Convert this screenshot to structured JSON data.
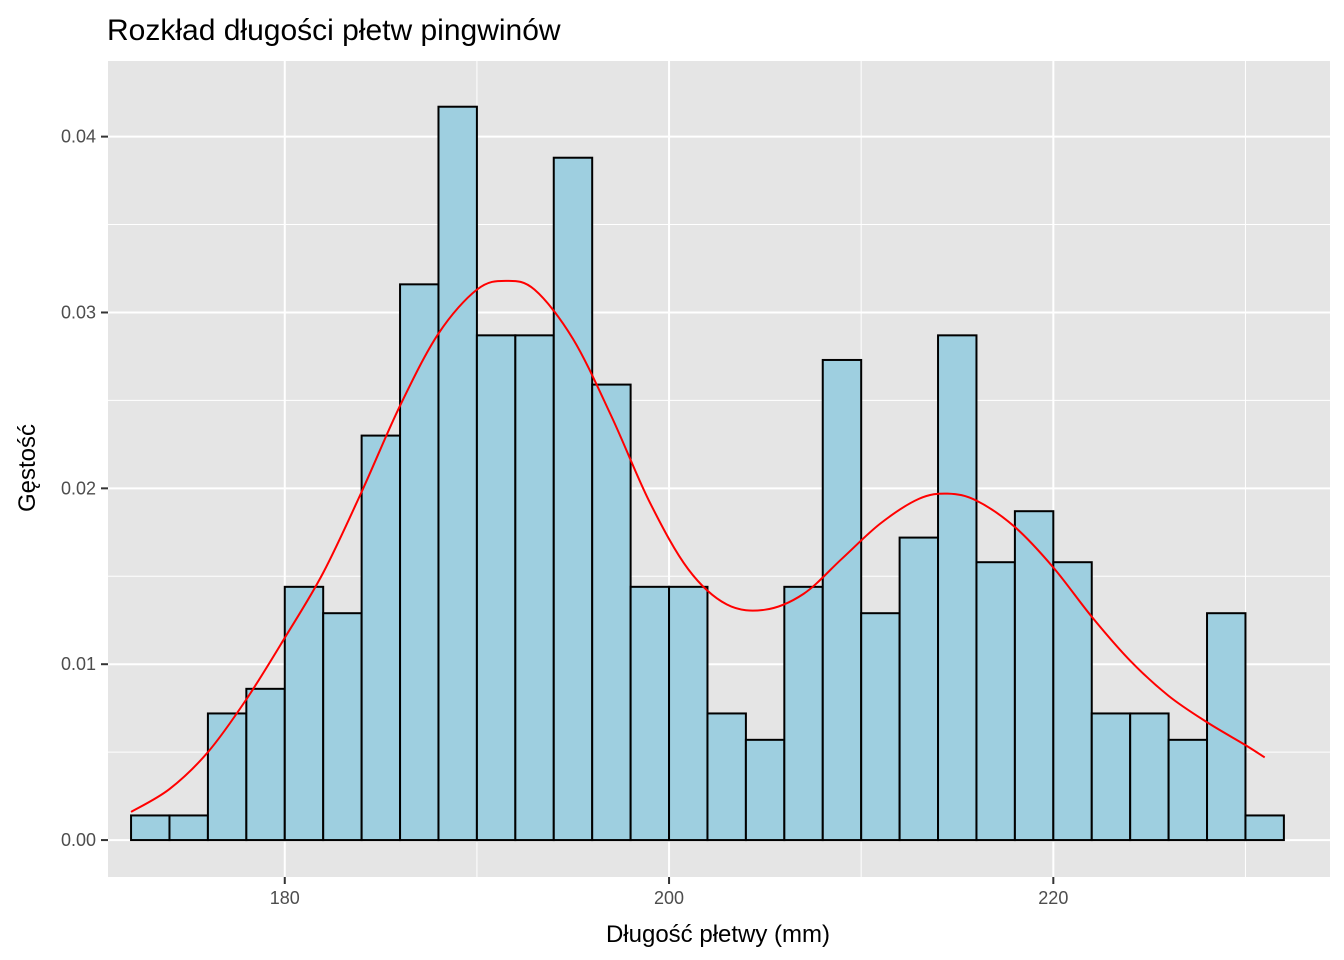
{
  "chart_data": {
    "type": "bar",
    "title": "Rozkład długości płetw pingwinów",
    "xlabel": "Długość płetwy (mm)",
    "ylabel": "Gęstość",
    "xlim": [
      170.8,
      234.4
    ],
    "ylim": [
      -0.0021,
      0.0443
    ],
    "x_ticks": [
      180,
      200,
      220
    ],
    "x_tick_labels": [
      "180",
      "200",
      "220"
    ],
    "y_ticks": [
      0.0,
      0.01,
      0.02,
      0.03,
      0.04
    ],
    "y_tick_labels": [
      "0.00",
      "0.01",
      "0.02",
      "0.03",
      "0.04"
    ],
    "grid": true,
    "background": "#e5e5e5",
    "bar_fill": "#9ecfe0",
    "bar_outline": "#000000",
    "density_color": "#ff0000",
    "histogram": {
      "bins": [
        {
          "x0": 172.0,
          "x1": 174.0,
          "density": 0.0014
        },
        {
          "x0": 174.0,
          "x1": 176.0,
          "density": 0.0014
        },
        {
          "x0": 176.0,
          "x1": 178.0,
          "density": 0.0072
        },
        {
          "x0": 178.0,
          "x1": 180.0,
          "density": 0.0086
        },
        {
          "x0": 180.0,
          "x1": 182.0,
          "density": 0.0144
        },
        {
          "x0": 182.0,
          "x1": 184.0,
          "density": 0.0129
        },
        {
          "x0": 184.0,
          "x1": 186.0,
          "density": 0.023
        },
        {
          "x0": 186.0,
          "x1": 188.0,
          "density": 0.0316
        },
        {
          "x0": 188.0,
          "x1": 190.0,
          "density": 0.0417
        },
        {
          "x0": 190.0,
          "x1": 192.0,
          "density": 0.0287
        },
        {
          "x0": 192.0,
          "x1": 194.0,
          "density": 0.0287
        },
        {
          "x0": 194.0,
          "x1": 196.0,
          "density": 0.0388
        },
        {
          "x0": 196.0,
          "x1": 198.0,
          "density": 0.0259
        },
        {
          "x0": 198.0,
          "x1": 200.0,
          "density": 0.0144
        },
        {
          "x0": 200.0,
          "x1": 202.0,
          "density": 0.0144
        },
        {
          "x0": 202.0,
          "x1": 204.0,
          "density": 0.0072
        },
        {
          "x0": 204.0,
          "x1": 206.0,
          "density": 0.0057
        },
        {
          "x0": 206.0,
          "x1": 208.0,
          "density": 0.0144
        },
        {
          "x0": 208.0,
          "x1": 210.0,
          "density": 0.0273
        },
        {
          "x0": 210.0,
          "x1": 212.0,
          "density": 0.0129
        },
        {
          "x0": 212.0,
          "x1": 214.0,
          "density": 0.0172
        },
        {
          "x0": 214.0,
          "x1": 216.0,
          "density": 0.0287
        },
        {
          "x0": 216.0,
          "x1": 218.0,
          "density": 0.0158
        },
        {
          "x0": 218.0,
          "x1": 220.0,
          "density": 0.0187
        },
        {
          "x0": 220.0,
          "x1": 222.0,
          "density": 0.0158
        },
        {
          "x0": 222.0,
          "x1": 224.0,
          "density": 0.0072
        },
        {
          "x0": 224.0,
          "x1": 226.0,
          "density": 0.0072
        },
        {
          "x0": 226.0,
          "x1": 228.0,
          "density": 0.0057
        },
        {
          "x0": 228.0,
          "x1": 230.0,
          "density": 0.0129
        },
        {
          "x0": 230.0,
          "x1": 232.0,
          "density": 0.0014
        }
      ]
    },
    "density_curve": {
      "x": [
        172,
        174,
        176,
        178,
        180,
        182,
        184,
        186,
        188,
        190,
        191.5,
        193,
        195,
        197,
        199,
        201,
        203,
        205,
        207,
        209,
        211,
        213,
        214.5,
        216,
        218,
        220,
        222,
        224,
        226,
        228,
        230,
        231
      ],
      "y": [
        0.0016,
        0.0029,
        0.005,
        0.008,
        0.0115,
        0.0152,
        0.0198,
        0.0247,
        0.0288,
        0.0313,
        0.0318,
        0.0313,
        0.0285,
        0.0241,
        0.0192,
        0.0154,
        0.0134,
        0.0131,
        0.014,
        0.016,
        0.018,
        0.0194,
        0.0197,
        0.0193,
        0.0178,
        0.0155,
        0.0127,
        0.0102,
        0.0082,
        0.0067,
        0.0054,
        0.0047
      ]
    }
  }
}
